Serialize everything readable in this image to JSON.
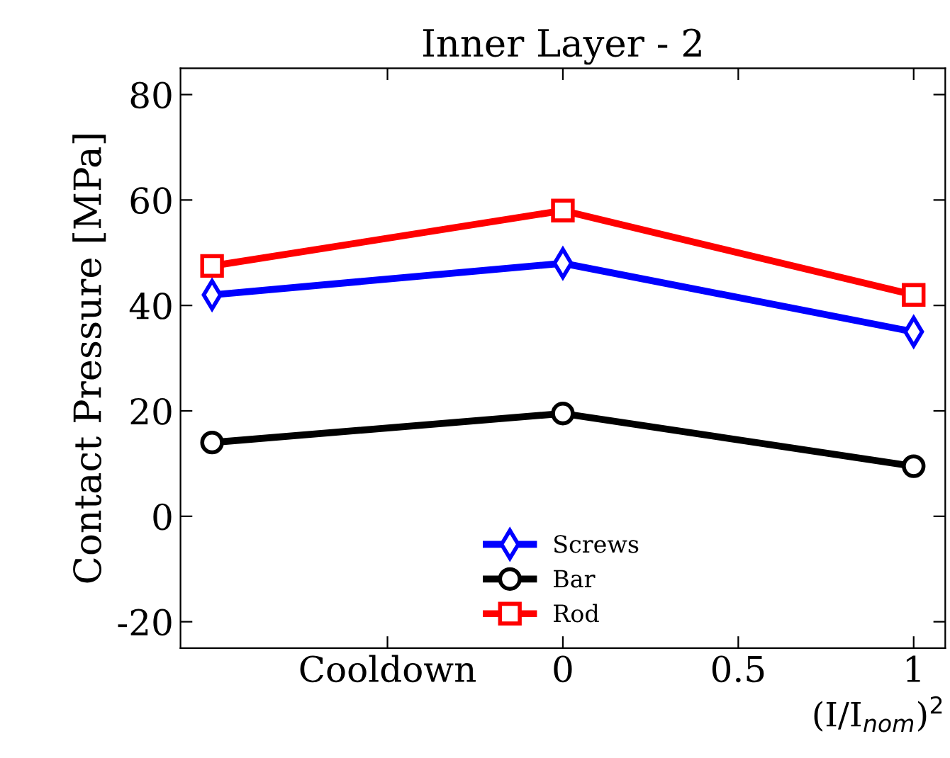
{
  "chart_data": {
    "type": "line",
    "title": "Inner Layer - 2",
    "xlabel": "(I/I$_{nom}$)$^{2}$",
    "ylabel": "Contact Pressure [MPa]",
    "x": [
      -1,
      0,
      1
    ],
    "series": [
      {
        "name": "Screws",
        "color": "#0000ff",
        "marker": "diamond",
        "values": [
          42,
          48,
          35
        ]
      },
      {
        "name": "Bar",
        "color": "#000000",
        "marker": "circle",
        "values": [
          14,
          19.5,
          9.5
        ]
      },
      {
        "name": "Rod",
        "color": "#ff0000",
        "marker": "square",
        "values": [
          47.5,
          58,
          42
        ]
      }
    ],
    "xlim": [
      -1.09,
      1.09
    ],
    "xticks": [
      {
        "value": -0.5,
        "label": "Cooldown"
      },
      0,
      0.5,
      1
    ],
    "ylim": [
      -25,
      85
    ],
    "yticks": [
      -20,
      0,
      20,
      40,
      60,
      80
    ],
    "grid": false,
    "legend": "bottom",
    "line_style": "solid"
  }
}
